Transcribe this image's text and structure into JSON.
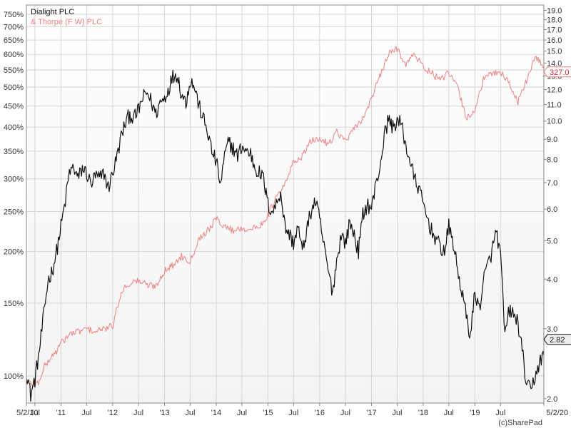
{
  "chart_data": {
    "type": "line",
    "title": "",
    "xlabel": "",
    "ylabel": "",
    "x_range": [
      "2010-05-02",
      "2020-05-02"
    ],
    "x_ticks": [
      {
        "date": "2010-05-02",
        "label": "5/2/10"
      },
      {
        "date": "2010-07-01",
        "label": "Jul"
      },
      {
        "date": "2011-01-01",
        "label": "'11"
      },
      {
        "date": "2011-07-01",
        "label": "Jul"
      },
      {
        "date": "2012-01-01",
        "label": "'12"
      },
      {
        "date": "2012-07-01",
        "label": "Jul"
      },
      {
        "date": "2013-01-01",
        "label": "'13"
      },
      {
        "date": "2013-07-01",
        "label": "Jul"
      },
      {
        "date": "2014-01-01",
        "label": "'14"
      },
      {
        "date": "2014-07-01",
        "label": "Jul"
      },
      {
        "date": "2015-01-01",
        "label": "'15"
      },
      {
        "date": "2015-07-01",
        "label": "Jul"
      },
      {
        "date": "2016-01-01",
        "label": "'16"
      },
      {
        "date": "2016-07-01",
        "label": "Jul"
      },
      {
        "date": "2017-01-01",
        "label": "'17"
      },
      {
        "date": "2017-07-01",
        "label": "Jul"
      },
      {
        "date": "2018-01-01",
        "label": "'18"
      },
      {
        "date": "2018-07-01",
        "label": "Jul"
      },
      {
        "date": "2019-01-01",
        "label": "'19"
      },
      {
        "date": "2019-07-01",
        "label": "Jul"
      },
      {
        "date": "2020-05-02",
        "label": "5/2/20"
      }
    ],
    "left_axis": {
      "scale": "log",
      "range": [
        86,
        790
      ],
      "ticks": [
        {
          "value": 100,
          "label": "100%"
        },
        {
          "value": 150,
          "label": "150%"
        },
        {
          "value": 200,
          "label": "200%"
        },
        {
          "value": 250,
          "label": "250%"
        },
        {
          "value": 300,
          "label": "300%"
        },
        {
          "value": 350,
          "label": "350%"
        },
        {
          "value": 400,
          "label": "400%"
        },
        {
          "value": 450,
          "label": "450%"
        },
        {
          "value": 500,
          "label": "500%"
        },
        {
          "value": 550,
          "label": "550%"
        },
        {
          "value": 600,
          "label": "600%"
        },
        {
          "value": 650,
          "label": "650%"
        },
        {
          "value": 700,
          "label": "700%"
        },
        {
          "value": 750,
          "label": "750%"
        }
      ]
    },
    "right_axis": {
      "scale": "log",
      "range": [
        1.95,
        19.6
      ],
      "ticks": [
        {
          "value": 2.0,
          "label": "2.0"
        },
        {
          "value": 3.0,
          "label": "3.0"
        },
        {
          "value": 4.0,
          "label": "4.0"
        },
        {
          "value": 5.0,
          "label": "5.0"
        },
        {
          "value": 6.0,
          "label": "6.0"
        },
        {
          "value": 7.0,
          "label": "7.0"
        },
        {
          "value": 8.0,
          "label": "8.0"
        },
        {
          "value": 9.0,
          "label": "9.0"
        },
        {
          "value": 10.0,
          "label": "10.0"
        },
        {
          "value": 11.0,
          "label": "11.0"
        },
        {
          "value": 12.0,
          "label": "12.0"
        },
        {
          "value": 13.0,
          "label": "13.0"
        },
        {
          "value": 14.0,
          "label": "14.0"
        },
        {
          "value": 15.0,
          "label": "15.0"
        },
        {
          "value": 16.0,
          "label": "16.0"
        },
        {
          "value": 17.0,
          "label": "17.0"
        },
        {
          "value": 18.0,
          "label": "18.0"
        },
        {
          "value": 19.0,
          "label": "19.0"
        }
      ]
    },
    "grid": true,
    "legend_position": "top-left",
    "series": [
      {
        "name": "Dialight PLC",
        "color": "#111111",
        "axis": "left",
        "badge": {
          "label": "2.82",
          "value": 2.82,
          "axis": "right"
        },
        "points": [
          [
            "2010-05-02",
            103
          ],
          [
            "2010-06-01",
            90
          ],
          [
            "2010-07-01",
            98
          ],
          [
            "2010-08-01",
            115
          ],
          [
            "2010-09-01",
            140
          ],
          [
            "2010-10-01",
            170
          ],
          [
            "2010-11-01",
            180
          ],
          [
            "2010-12-01",
            200
          ],
          [
            "2011-01-01",
            230
          ],
          [
            "2011-02-01",
            265
          ],
          [
            "2011-03-01",
            310
          ],
          [
            "2011-04-01",
            320
          ],
          [
            "2011-05-01",
            300
          ],
          [
            "2011-06-01",
            318
          ],
          [
            "2011-07-01",
            310
          ],
          [
            "2011-08-01",
            290
          ],
          [
            "2011-09-01",
            305
          ],
          [
            "2011-10-01",
            300
          ],
          [
            "2011-11-01",
            310
          ],
          [
            "2011-12-01",
            285
          ],
          [
            "2012-01-01",
            310
          ],
          [
            "2012-02-01",
            340
          ],
          [
            "2012-03-01",
            380
          ],
          [
            "2012-04-01",
            410
          ],
          [
            "2012-05-01",
            430
          ],
          [
            "2012-06-01",
            420
          ],
          [
            "2012-07-01",
            440
          ],
          [
            "2012-08-01",
            470
          ],
          [
            "2012-09-01",
            485
          ],
          [
            "2012-10-01",
            460
          ],
          [
            "2012-11-01",
            430
          ],
          [
            "2012-12-01",
            460
          ],
          [
            "2013-01-01",
            470
          ],
          [
            "2013-02-01",
            500
          ],
          [
            "2013-03-01",
            530
          ],
          [
            "2013-04-01",
            540
          ],
          [
            "2013-05-01",
            480
          ],
          [
            "2013-06-01",
            460
          ],
          [
            "2013-07-01",
            520
          ],
          [
            "2013-08-01",
            500
          ],
          [
            "2013-09-01",
            450
          ],
          [
            "2013-10-01",
            420
          ],
          [
            "2013-11-01",
            390
          ],
          [
            "2013-12-01",
            350
          ],
          [
            "2014-01-01",
            330
          ],
          [
            "2014-02-01",
            290
          ],
          [
            "2014-03-01",
            340
          ],
          [
            "2014-04-01",
            370
          ],
          [
            "2014-05-01",
            355
          ],
          [
            "2014-06-01",
            340
          ],
          [
            "2014-07-01",
            360
          ],
          [
            "2014-08-01",
            350
          ],
          [
            "2014-09-01",
            345
          ],
          [
            "2014-10-01",
            320
          ],
          [
            "2014-11-01",
            310
          ],
          [
            "2014-12-01",
            300
          ],
          [
            "2015-01-01",
            260
          ],
          [
            "2015-02-01",
            250
          ],
          [
            "2015-03-01",
            260
          ],
          [
            "2015-04-01",
            280
          ],
          [
            "2015-05-01",
            230
          ],
          [
            "2015-06-01",
            220
          ],
          [
            "2015-07-01",
            210
          ],
          [
            "2015-08-01",
            230
          ],
          [
            "2015-09-01",
            200
          ],
          [
            "2015-10-01",
            225
          ],
          [
            "2015-11-01",
            250
          ],
          [
            "2015-12-01",
            265
          ],
          [
            "2016-01-01",
            240
          ],
          [
            "2016-02-01",
            205
          ],
          [
            "2016-03-01",
            180
          ],
          [
            "2016-04-01",
            160
          ],
          [
            "2016-05-01",
            190
          ],
          [
            "2016-06-01",
            220
          ],
          [
            "2016-07-01",
            210
          ],
          [
            "2016-08-01",
            235
          ],
          [
            "2016-09-01",
            220
          ],
          [
            "2016-10-01",
            200
          ],
          [
            "2016-11-01",
            245
          ],
          [
            "2016-12-01",
            260
          ],
          [
            "2017-01-01",
            255
          ],
          [
            "2017-02-01",
            290
          ],
          [
            "2017-03-01",
            320
          ],
          [
            "2017-04-01",
            380
          ],
          [
            "2017-05-01",
            420
          ],
          [
            "2017-06-01",
            400
          ],
          [
            "2017-07-01",
            415
          ],
          [
            "2017-08-01",
            405
          ],
          [
            "2017-09-01",
            360
          ],
          [
            "2017-10-01",
            330
          ],
          [
            "2017-11-01",
            300
          ],
          [
            "2017-12-01",
            285
          ],
          [
            "2018-01-01",
            260
          ],
          [
            "2018-02-01",
            240
          ],
          [
            "2018-03-01",
            225
          ],
          [
            "2018-04-01",
            215
          ],
          [
            "2018-05-01",
            205
          ],
          [
            "2018-06-01",
            200
          ],
          [
            "2018-07-01",
            230
          ],
          [
            "2018-08-01",
            210
          ],
          [
            "2018-09-01",
            180
          ],
          [
            "2018-10-01",
            160
          ],
          [
            "2018-11-01",
            140
          ],
          [
            "2018-12-01",
            125
          ],
          [
            "2019-01-01",
            160
          ],
          [
            "2019-02-01",
            145
          ],
          [
            "2019-03-01",
            170
          ],
          [
            "2019-04-01",
            185
          ],
          [
            "2019-05-01",
            200
          ],
          [
            "2019-06-01",
            225
          ],
          [
            "2019-07-01",
            195
          ],
          [
            "2019-08-01",
            125
          ],
          [
            "2019-09-01",
            145
          ],
          [
            "2019-10-01",
            140
          ],
          [
            "2019-11-01",
            135
          ],
          [
            "2019-12-01",
            115
          ],
          [
            "2020-01-01",
            95
          ],
          [
            "2020-02-01",
            92
          ],
          [
            "2020-03-01",
            100
          ],
          [
            "2020-04-01",
            108
          ],
          [
            "2020-05-02",
            112
          ]
        ]
      },
      {
        "name": "& Thorpe (F W) PLC",
        "color": "#f08080",
        "axis": "left",
        "badge": {
          "label": "327.0",
          "value": 13.3,
          "axis": "right"
        },
        "points": [
          [
            "2010-05-02",
            97
          ],
          [
            "2010-06-01",
            96
          ],
          [
            "2010-07-01",
            95
          ],
          [
            "2010-08-01",
            97
          ],
          [
            "2010-09-01",
            105
          ],
          [
            "2010-10-01",
            108
          ],
          [
            "2010-11-01",
            112
          ],
          [
            "2010-12-01",
            115
          ],
          [
            "2011-01-01",
            120
          ],
          [
            "2011-03-01",
            126
          ],
          [
            "2011-05-01",
            128
          ],
          [
            "2011-07-01",
            130
          ],
          [
            "2011-09-01",
            128
          ],
          [
            "2011-11-01",
            130
          ],
          [
            "2012-01-01",
            132
          ],
          [
            "2012-03-01",
            160
          ],
          [
            "2012-05-01",
            168
          ],
          [
            "2012-07-01",
            170
          ],
          [
            "2012-09-01",
            166
          ],
          [
            "2012-11-01",
            165
          ],
          [
            "2013-01-01",
            180
          ],
          [
            "2013-03-01",
            185
          ],
          [
            "2013-05-01",
            195
          ],
          [
            "2013-07-01",
            190
          ],
          [
            "2013-09-01",
            215
          ],
          [
            "2013-11-01",
            225
          ],
          [
            "2014-01-01",
            240
          ],
          [
            "2014-03-01",
            230
          ],
          [
            "2014-05-01",
            225
          ],
          [
            "2014-07-01",
            228
          ],
          [
            "2014-09-01",
            226
          ],
          [
            "2014-11-01",
            230
          ],
          [
            "2015-01-01",
            245
          ],
          [
            "2015-03-01",
            270
          ],
          [
            "2015-05-01",
            290
          ],
          [
            "2015-07-01",
            330
          ],
          [
            "2015-09-01",
            340
          ],
          [
            "2015-11-01",
            370
          ],
          [
            "2016-01-01",
            375
          ],
          [
            "2016-03-01",
            365
          ],
          [
            "2016-05-01",
            390
          ],
          [
            "2016-07-01",
            370
          ],
          [
            "2016-09-01",
            395
          ],
          [
            "2016-11-01",
            420
          ],
          [
            "2017-01-01",
            470
          ],
          [
            "2017-03-01",
            530
          ],
          [
            "2017-05-01",
            600
          ],
          [
            "2017-07-01",
            620
          ],
          [
            "2017-09-01",
            570
          ],
          [
            "2017-11-01",
            600
          ],
          [
            "2018-01-01",
            560
          ],
          [
            "2018-03-01",
            540
          ],
          [
            "2018-05-01",
            520
          ],
          [
            "2018-07-01",
            540
          ],
          [
            "2018-09-01",
            500
          ],
          [
            "2018-11-01",
            420
          ],
          [
            "2019-01-01",
            440
          ],
          [
            "2019-03-01",
            520
          ],
          [
            "2019-05-01",
            540
          ],
          [
            "2019-07-01",
            545
          ],
          [
            "2019-09-01",
            510
          ],
          [
            "2019-11-01",
            460
          ],
          [
            "2020-01-01",
            520
          ],
          [
            "2020-03-01",
            590
          ],
          [
            "2020-05-02",
            560
          ]
        ]
      }
    ],
    "credit": "(c)SharePad"
  }
}
